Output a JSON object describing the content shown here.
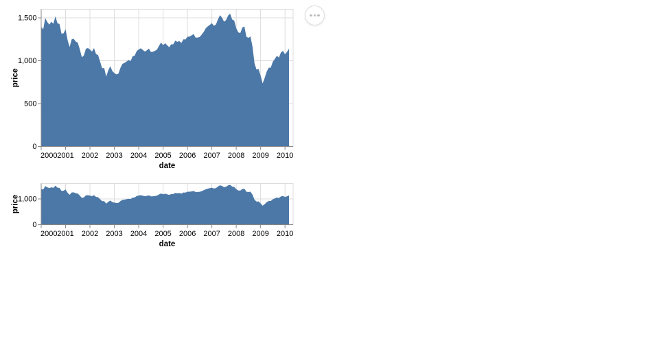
{
  "embed": {
    "actions_button": {
      "icon": "ellipsis-icon"
    }
  },
  "colors": {
    "area": "#4c78a8",
    "grid": "#dddddd",
    "view_border": "#dddddd",
    "axis_line": "#888888",
    "label": "#000000",
    "background": "#ffffff"
  },
  "chart_data": {
    "type": "area",
    "title": "",
    "xlabel": "date",
    "ylabel": "price",
    "x_interval": "month",
    "x_start": "2000-01",
    "x_end": "2010-03",
    "x_tick_labels": [
      "2000",
      "2001",
      "2002",
      "2003",
      "2004",
      "2005",
      "2006",
      "2007",
      "2008",
      "2009",
      "2010"
    ],
    "grid": true,
    "legend": false,
    "series": [
      {
        "name": "price",
        "values": [
          1394.46,
          1366.42,
          1498.58,
          1452.43,
          1420.6,
          1454.6,
          1430.83,
          1517.68,
          1436.51,
          1429.4,
          1314.95,
          1320.28,
          1366.01,
          1239.94,
          1160.33,
          1249.46,
          1255.82,
          1224.38,
          1211.23,
          1133.58,
          1040.94,
          1059.78,
          1139.45,
          1148.08,
          1130.2,
          1106.73,
          1147.39,
          1076.92,
          1067.14,
          989.82,
          911.62,
          916.07,
          815.28,
          885.76,
          936.31,
          879.82,
          855.7,
          841.15,
          848.18,
          916.92,
          963.59,
          974.5,
          990.31,
          1008.01,
          995.97,
          1050.71,
          1058.2,
          1111.92,
          1131.13,
          1144.94,
          1126.21,
          1107.3,
          1120.68,
          1140.84,
          1101.72,
          1104.24,
          1114.58,
          1130.2,
          1173.82,
          1211.92,
          1181.27,
          1203.6,
          1180.59,
          1156.85,
          1191.5,
          1191.33,
          1234.18,
          1220.33,
          1228.81,
          1207.01,
          1249.48,
          1248.29,
          1280.08,
          1280.66,
          1294.87,
          1310.61,
          1270.09,
          1270.2,
          1276.66,
          1303.82,
          1335.85,
          1377.94,
          1400.63,
          1418.3,
          1438.24,
          1406.82,
          1420.86,
          1482.37,
          1530.62,
          1503.35,
          1455.27,
          1473.99,
          1526.75,
          1549.38,
          1481.14,
          1468.36,
          1378.55,
          1330.63,
          1322.7,
          1385.59,
          1400.38,
          1280.0,
          1267.38,
          1282.83,
          1166.36,
          968.75,
          896.24,
          903.25,
          825.88,
          735.09,
          797.87,
          872.81,
          919.14,
          919.32,
          987.48,
          1020.62,
          1057.08,
          1036.19,
          1095.63,
          1115.1,
          1073.87,
          1104.49,
          1140.45
        ]
      }
    ],
    "views": [
      {
        "name": "detail",
        "role": "detail view",
        "ylim": [
          0,
          1600
        ],
        "y_ticks": [
          0,
          500,
          1000,
          1500
        ],
        "y_tick_labels": [
          "0",
          "500",
          "1,000",
          "1,500"
        ]
      },
      {
        "name": "overview",
        "role": "overview / brush view",
        "ylim": [
          0,
          1600
        ],
        "y_ticks": [
          0,
          1000
        ],
        "y_tick_labels": [
          "0",
          "1,000"
        ]
      }
    ]
  }
}
